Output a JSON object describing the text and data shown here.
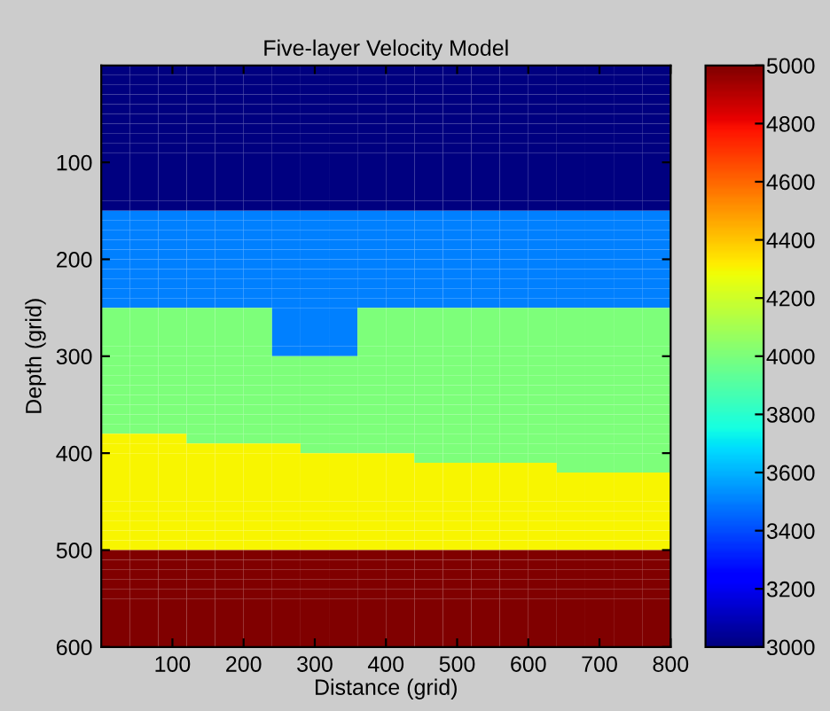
{
  "chart_data": {
    "type": "heatmap",
    "title": "Five-layer Velocity Model",
    "xlabel": "Distance (grid)",
    "ylabel": "Depth (grid)",
    "xlim": [
      0,
      800
    ],
    "ylim": [
      600,
      0
    ],
    "xticks": [
      100,
      200,
      300,
      400,
      500,
      600,
      700,
      800
    ],
    "yticks": [
      100,
      200,
      300,
      400,
      500,
      600
    ],
    "clim": [
      3000,
      5000
    ],
    "cticks": [
      3000,
      3200,
      3400,
      3600,
      3800,
      4000,
      4200,
      4400,
      4600,
      4800,
      5000
    ],
    "cells": [
      [
        3000,
        3000,
        3000,
        3000,
        3000,
        3000,
        3000,
        3000,
        3000,
        3000,
        3000,
        3000,
        3000,
        3000,
        3000,
        3000,
        3000,
        3000,
        3000,
        3000
      ],
      [
        3000,
        3000,
        3000,
        3000,
        3000,
        3000,
        3000,
        3000,
        3000,
        3000,
        3000,
        3000,
        3000,
        3000,
        3000,
        3000,
        3000,
        3000,
        3000,
        3000
      ],
      [
        3000,
        3000,
        3000,
        3000,
        3000,
        3000,
        3000,
        3000,
        3000,
        3000,
        3000,
        3000,
        3000,
        3000,
        3000,
        3000,
        3000,
        3000,
        3000,
        3000
      ],
      [
        3000,
        3000,
        3000,
        3000,
        3000,
        3000,
        3000,
        3000,
        3000,
        3000,
        3000,
        3000,
        3000,
        3000,
        3000,
        3000,
        3000,
        3000,
        3000,
        3000
      ],
      [
        3000,
        3000,
        3000,
        3000,
        3000,
        3000,
        3000,
        3000,
        3000,
        3000,
        3000,
        3000,
        3000,
        3000,
        3000,
        3000,
        3000,
        3000,
        3000,
        3000
      ],
      [
        3000,
        3000,
        3000,
        3000,
        3000,
        3000,
        3000,
        3000,
        3000,
        3000,
        3000,
        3000,
        3000,
        3000,
        3000,
        3000,
        3000,
        3000,
        3000,
        3000
      ],
      [
        3000,
        3000,
        3000,
        3000,
        3000,
        3000,
        3000,
        3000,
        3000,
        3000,
        3000,
        3000,
        3000,
        3000,
        3000,
        3000,
        3000,
        3000,
        3000,
        3000
      ],
      [
        3000,
        3000,
        3000,
        3000,
        3000,
        3000,
        3000,
        3000,
        3000,
        3000,
        3000,
        3000,
        3000,
        3000,
        3000,
        3000,
        3000,
        3000,
        3000,
        3000
      ],
      [
        3000,
        3000,
        3000,
        3000,
        3000,
        3000,
        3000,
        3000,
        3000,
        3000,
        3000,
        3000,
        3000,
        3000,
        3000,
        3000,
        3000,
        3000,
        3000,
        3000
      ],
      [
        3000,
        3000,
        3000,
        3000,
        3000,
        3000,
        3000,
        3000,
        3000,
        3000,
        3000,
        3000,
        3000,
        3000,
        3000,
        3000,
        3000,
        3000,
        3000,
        3000
      ],
      [
        3000,
        3000,
        3000,
        3000,
        3000,
        3000,
        3000,
        3000,
        3000,
        3000,
        3000,
        3000,
        3000,
        3000,
        3000,
        3000,
        3000,
        3000,
        3000,
        3000
      ],
      [
        3000,
        3000,
        3000,
        3000,
        3000,
        3000,
        3000,
        3000,
        3000,
        3000,
        3000,
        3000,
        3000,
        3000,
        3000,
        3000,
        3000,
        3000,
        3000,
        3000
      ],
      [
        3000,
        3000,
        3000,
        3000,
        3000,
        3000,
        3000,
        3000,
        3000,
        3000,
        3000,
        3000,
        3000,
        3000,
        3000,
        3000,
        3000,
        3000,
        3000,
        3000
      ],
      [
        3000,
        3000,
        3000,
        3000,
        3000,
        3000,
        3000,
        3000,
        3000,
        3000,
        3000,
        3000,
        3000,
        3000,
        3000,
        3000,
        3000,
        3000,
        3000,
        3000
      ],
      [
        3000,
        3000,
        3000,
        3000,
        3000,
        3000,
        3000,
        3000,
        3000,
        3000,
        3000,
        3000,
        3000,
        3000,
        3000,
        3000,
        3000,
        3000,
        3000,
        3000
      ],
      [
        3500,
        3500,
        3500,
        3500,
        3500,
        3500,
        3500,
        3500,
        3500,
        3500,
        3500,
        3500,
        3500,
        3500,
        3500,
        3500,
        3500,
        3500,
        3500,
        3500
      ],
      [
        3500,
        3500,
        3500,
        3500,
        3500,
        3500,
        3500,
        3500,
        3500,
        3500,
        3500,
        3500,
        3500,
        3500,
        3500,
        3500,
        3500,
        3500,
        3500,
        3500
      ],
      [
        3500,
        3500,
        3500,
        3500,
        3500,
        3500,
        3500,
        3500,
        3500,
        3500,
        3500,
        3500,
        3500,
        3500,
        3500,
        3500,
        3500,
        3500,
        3500,
        3500
      ],
      [
        3500,
        3500,
        3500,
        3500,
        3500,
        3500,
        3500,
        3500,
        3500,
        3500,
        3500,
        3500,
        3500,
        3500,
        3500,
        3500,
        3500,
        3500,
        3500,
        3500
      ],
      [
        3500,
        3500,
        3500,
        3500,
        3500,
        3500,
        3500,
        3500,
        3500,
        3500,
        3500,
        3500,
        3500,
        3500,
        3500,
        3500,
        3500,
        3500,
        3500,
        3500
      ],
      [
        3500,
        3500,
        3500,
        3500,
        3500,
        3500,
        3500,
        3500,
        3500,
        3500,
        3500,
        3500,
        3500,
        3500,
        3500,
        3500,
        3500,
        3500,
        3500,
        3500
      ],
      [
        3500,
        3500,
        3500,
        3500,
        3500,
        3500,
        3500,
        3500,
        3500,
        3500,
        3500,
        3500,
        3500,
        3500,
        3500,
        3500,
        3500,
        3500,
        3500,
        3500
      ],
      [
        3500,
        3500,
        3500,
        3500,
        3500,
        3500,
        3500,
        3500,
        3500,
        3500,
        3500,
        3500,
        3500,
        3500,
        3500,
        3500,
        3500,
        3500,
        3500,
        3500
      ],
      [
        3500,
        3500,
        3500,
        3500,
        3500,
        3500,
        3500,
        3500,
        3500,
        3500,
        3500,
        3500,
        3500,
        3500,
        3500,
        3500,
        3500,
        3500,
        3500,
        3500
      ],
      [
        3500,
        3500,
        3500,
        3500,
        3500,
        3500,
        3500,
        3500,
        3500,
        3500,
        3500,
        3500,
        3500,
        3500,
        3500,
        3500,
        3500,
        3500,
        3500,
        3500
      ],
      [
        4000,
        4000,
        4000,
        4000,
        4000,
        4000,
        3500,
        3500,
        3500,
        4000,
        4000,
        4000,
        4000,
        4000,
        4000,
        4000,
        4000,
        4000,
        4000,
        4000
      ],
      [
        4000,
        4000,
        4000,
        4000,
        4000,
        4000,
        3500,
        3500,
        3500,
        4000,
        4000,
        4000,
        4000,
        4000,
        4000,
        4000,
        4000,
        4000,
        4000,
        4000
      ],
      [
        4000,
        4000,
        4000,
        4000,
        4000,
        4000,
        3500,
        3500,
        3500,
        4000,
        4000,
        4000,
        4000,
        4000,
        4000,
        4000,
        4000,
        4000,
        4000,
        4000
      ],
      [
        4000,
        4000,
        4000,
        4000,
        4000,
        4000,
        3500,
        3500,
        3500,
        4000,
        4000,
        4000,
        4000,
        4000,
        4000,
        4000,
        4000,
        4000,
        4000,
        4000
      ],
      [
        4000,
        4000,
        4000,
        4000,
        4000,
        4000,
        3500,
        3500,
        3500,
        4000,
        4000,
        4000,
        4000,
        4000,
        4000,
        4000,
        4000,
        4000,
        4000,
        4000
      ],
      [
        4000,
        4000,
        4000,
        4000,
        4000,
        4000,
        4000,
        4000,
        4000,
        4000,
        4000,
        4000,
        4000,
        4000,
        4000,
        4000,
        4000,
        4000,
        4000,
        4000
      ],
      [
        4000,
        4000,
        4000,
        4000,
        4000,
        4000,
        4000,
        4000,
        4000,
        4000,
        4000,
        4000,
        4000,
        4000,
        4000,
        4000,
        4000,
        4000,
        4000,
        4000
      ],
      [
        4000,
        4000,
        4000,
        4000,
        4000,
        4000,
        4000,
        4000,
        4000,
        4000,
        4000,
        4000,
        4000,
        4000,
        4000,
        4000,
        4000,
        4000,
        4000,
        4000
      ],
      [
        4000,
        4000,
        4000,
        4000,
        4000,
        4000,
        4000,
        4000,
        4000,
        4000,
        4000,
        4000,
        4000,
        4000,
        4000,
        4000,
        4000,
        4000,
        4000,
        4000
      ],
      [
        4000,
        4000,
        4000,
        4000,
        4000,
        4000,
        4000,
        4000,
        4000,
        4000,
        4000,
        4000,
        4000,
        4000,
        4000,
        4000,
        4000,
        4000,
        4000,
        4000
      ],
      [
        4000,
        4000,
        4000,
        4000,
        4000,
        4000,
        4000,
        4000,
        4000,
        4000,
        4000,
        4000,
        4000,
        4000,
        4000,
        4000,
        4000,
        4000,
        4000,
        4000
      ],
      [
        4000,
        4000,
        4000,
        4000,
        4000,
        4000,
        4000,
        4000,
        4000,
        4000,
        4000,
        4000,
        4000,
        4000,
        4000,
        4000,
        4000,
        4000,
        4000,
        4000
      ],
      [
        4000,
        4000,
        4000,
        4000,
        4000,
        4000,
        4000,
        4000,
        4000,
        4000,
        4000,
        4000,
        4000,
        4000,
        4000,
        4000,
        4000,
        4000,
        4000,
        4000
      ],
      [
        4300,
        4300,
        4300,
        4000,
        4000,
        4000,
        4000,
        4000,
        4000,
        4000,
        4000,
        4000,
        4000,
        4000,
        4000,
        4000,
        4000,
        4000,
        4000,
        4000
      ],
      [
        4300,
        4300,
        4300,
        4300,
        4300,
        4300,
        4300,
        4000,
        4000,
        4000,
        4000,
        4000,
        4000,
        4000,
        4000,
        4000,
        4000,
        4000,
        4000,
        4000
      ],
      [
        4300,
        4300,
        4300,
        4300,
        4300,
        4300,
        4300,
        4300,
        4300,
        4300,
        4300,
        4000,
        4000,
        4000,
        4000,
        4000,
        4000,
        4000,
        4000,
        4000
      ],
      [
        4300,
        4300,
        4300,
        4300,
        4300,
        4300,
        4300,
        4300,
        4300,
        4300,
        4300,
        4300,
        4300,
        4300,
        4300,
        4300,
        4000,
        4000,
        4000,
        4000
      ],
      [
        4300,
        4300,
        4300,
        4300,
        4300,
        4300,
        4300,
        4300,
        4300,
        4300,
        4300,
        4300,
        4300,
        4300,
        4300,
        4300,
        4300,
        4300,
        4300,
        4300
      ],
      [
        4300,
        4300,
        4300,
        4300,
        4300,
        4300,
        4300,
        4300,
        4300,
        4300,
        4300,
        4300,
        4300,
        4300,
        4300,
        4300,
        4300,
        4300,
        4300,
        4300
      ],
      [
        4300,
        4300,
        4300,
        4300,
        4300,
        4300,
        4300,
        4300,
        4300,
        4300,
        4300,
        4300,
        4300,
        4300,
        4300,
        4300,
        4300,
        4300,
        4300,
        4300
      ],
      [
        4300,
        4300,
        4300,
        4300,
        4300,
        4300,
        4300,
        4300,
        4300,
        4300,
        4300,
        4300,
        4300,
        4300,
        4300,
        4300,
        4300,
        4300,
        4300,
        4300
      ],
      [
        4300,
        4300,
        4300,
        4300,
        4300,
        4300,
        4300,
        4300,
        4300,
        4300,
        4300,
        4300,
        4300,
        4300,
        4300,
        4300,
        4300,
        4300,
        4300,
        4300
      ],
      [
        4300,
        4300,
        4300,
        4300,
        4300,
        4300,
        4300,
        4300,
        4300,
        4300,
        4300,
        4300,
        4300,
        4300,
        4300,
        4300,
        4300,
        4300,
        4300,
        4300
      ],
      [
        4300,
        4300,
        4300,
        4300,
        4300,
        4300,
        4300,
        4300,
        4300,
        4300,
        4300,
        4300,
        4300,
        4300,
        4300,
        4300,
        4300,
        4300,
        4300,
        4300
      ],
      [
        4300,
        4300,
        4300,
        4300,
        4300,
        4300,
        4300,
        4300,
        4300,
        4300,
        4300,
        4300,
        4300,
        4300,
        4300,
        4300,
        4300,
        4300,
        4300,
        4300
      ],
      [
        5000,
        5000,
        5000,
        5000,
        5000,
        5000,
        5000,
        5000,
        5000,
        5000,
        5000,
        5000,
        5000,
        5000,
        5000,
        5000,
        5000,
        5000,
        5000,
        5000
      ],
      [
        5000,
        5000,
        5000,
        5000,
        5000,
        5000,
        5000,
        5000,
        5000,
        5000,
        5000,
        5000,
        5000,
        5000,
        5000,
        5000,
        5000,
        5000,
        5000,
        5000
      ],
      [
        5000,
        5000,
        5000,
        5000,
        5000,
        5000,
        5000,
        5000,
        5000,
        5000,
        5000,
        5000,
        5000,
        5000,
        5000,
        5000,
        5000,
        5000,
        5000,
        5000
      ],
      [
        5000,
        5000,
        5000,
        5000,
        5000,
        5000,
        5000,
        5000,
        5000,
        5000,
        5000,
        5000,
        5000,
        5000,
        5000,
        5000,
        5000,
        5000,
        5000,
        5000
      ],
      [
        5000,
        5000,
        5000,
        5000,
        5000,
        5000,
        5000,
        5000,
        5000,
        5000,
        5000,
        5000,
        5000,
        5000,
        5000,
        5000,
        5000,
        5000,
        5000,
        5000
      ],
      [
        5000,
        5000,
        5000,
        5000,
        5000,
        5000,
        5000,
        5000,
        5000,
        5000,
        5000,
        5000,
        5000,
        5000,
        5000,
        5000,
        5000,
        5000,
        5000,
        5000
      ],
      [
        5000,
        5000,
        5000,
        5000,
        5000,
        5000,
        5000,
        5000,
        5000,
        5000,
        5000,
        5000,
        5000,
        5000,
        5000,
        5000,
        5000,
        5000,
        5000,
        5000
      ],
      [
        5000,
        5000,
        5000,
        5000,
        5000,
        5000,
        5000,
        5000,
        5000,
        5000,
        5000,
        5000,
        5000,
        5000,
        5000,
        5000,
        5000,
        5000,
        5000,
        5000
      ],
      [
        5000,
        5000,
        5000,
        5000,
        5000,
        5000,
        5000,
        5000,
        5000,
        5000,
        5000,
        5000,
        5000,
        5000,
        5000,
        5000,
        5000,
        5000,
        5000,
        5000
      ],
      [
        5000,
        5000,
        5000,
        5000,
        5000,
        5000,
        5000,
        5000,
        5000,
        5000,
        5000,
        5000,
        5000,
        5000,
        5000,
        5000,
        5000,
        5000,
        5000,
        5000
      ]
    ]
  }
}
